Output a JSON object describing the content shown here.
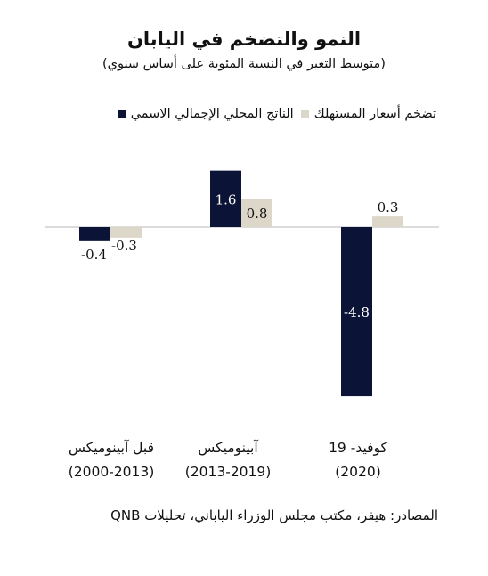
{
  "chart_data": {
    "type": "bar",
    "title": "النمو والتضخم في اليابان",
    "subtitle": "(متوسط التغير في النسبة المئوية على أساس سنوي)",
    "categories": [
      "كوفيد- 19",
      "آبينوميكس",
      "قبل آبينوميكس"
    ],
    "category_periods": [
      "(2020)",
      "(2013-2019)",
      "(2000-2013)"
    ],
    "series": [
      {
        "name": "الناتج المحلي الإجمالي الاسمي",
        "color": "#0b1437",
        "values": [
          -4.8,
          1.6,
          -0.4
        ]
      },
      {
        "name": "تضخم أسعار المستهلك",
        "color": "#dcd7c8",
        "values": [
          0.3,
          0.8,
          -0.3
        ]
      }
    ],
    "ylim": [
      -5,
      2
    ],
    "grid": false,
    "legend_position": "top"
  },
  "source_text": "المصادر: هيفر، مكتب مجلس الوزراء الياباني، تحليلات QNB"
}
